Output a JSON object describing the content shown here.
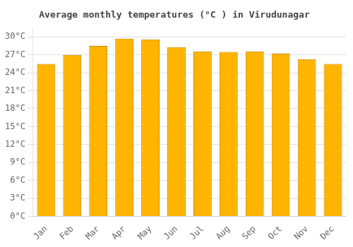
{
  "chart_data": {
    "type": "bar",
    "title": "Average monthly temperatures (°C ) in Virudunagar",
    "categories": [
      "Jan",
      "Feb",
      "Mar",
      "Apr",
      "May",
      "Jun",
      "Jul",
      "Aug",
      "Sep",
      "Oct",
      "Nov",
      "Dec"
    ],
    "values": [
      25.5,
      27.0,
      28.5,
      29.7,
      29.6,
      28.3,
      27.6,
      27.5,
      27.6,
      27.2,
      26.3,
      25.5
    ],
    "color": "#FFB400",
    "ylim": [
      0,
      31.5
    ],
    "yticks": [
      {
        "value": 0,
        "label": "0°C"
      },
      {
        "value": 3,
        "label": "3°C"
      },
      {
        "value": 6,
        "label": "6°C"
      },
      {
        "value": 9,
        "label": "9°C"
      },
      {
        "value": 12,
        "label": "12°C"
      },
      {
        "value": 15,
        "label": "15°C"
      },
      {
        "value": 18,
        "label": "18°C"
      },
      {
        "value": 21,
        "label": "21°C"
      },
      {
        "value": 24,
        "label": "24°C"
      },
      {
        "value": 27,
        "label": "27°C"
      },
      {
        "value": 30,
        "label": "30°C"
      }
    ],
    "grid": true
  }
}
